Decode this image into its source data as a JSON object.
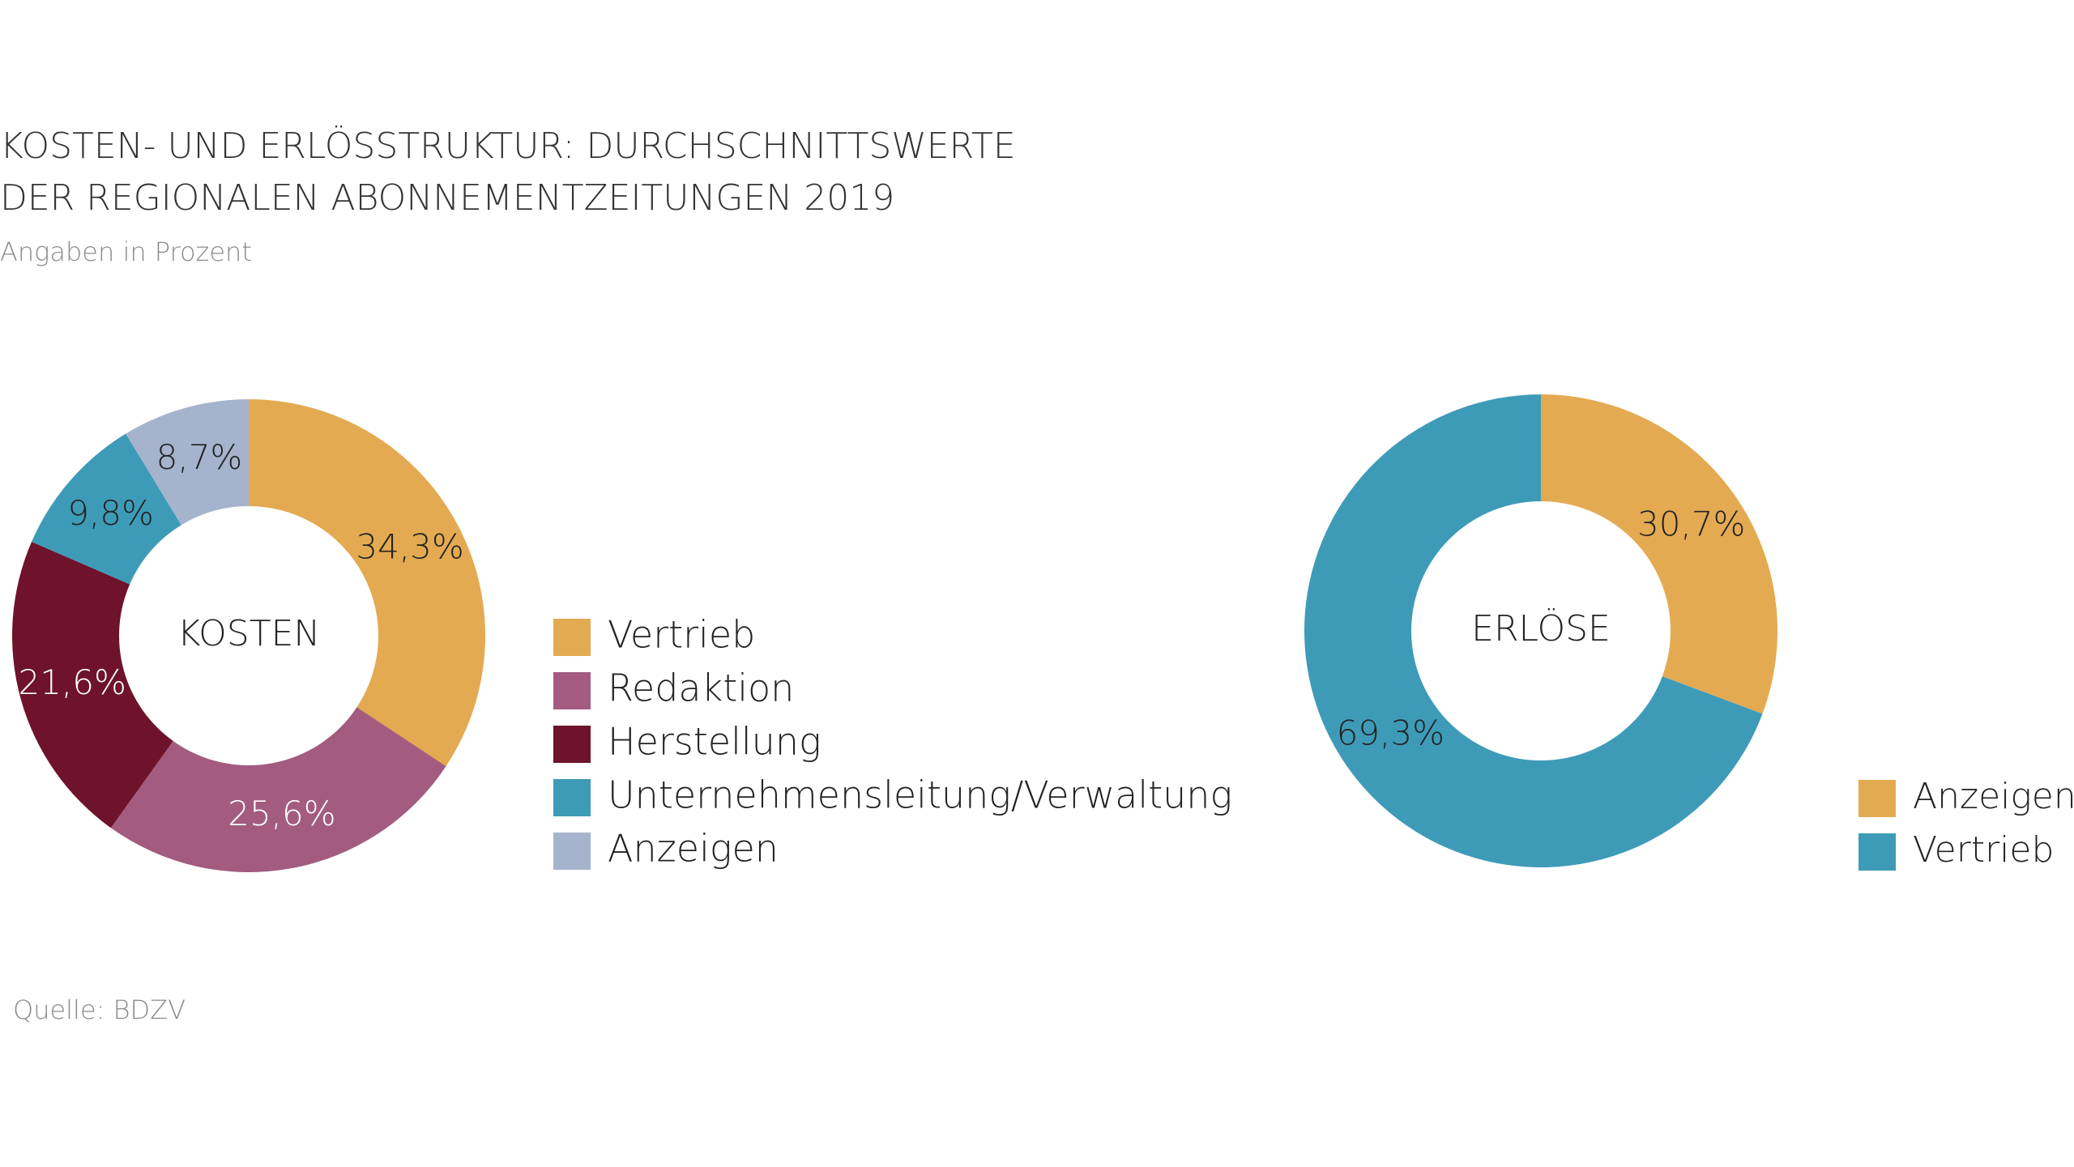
{
  "title": [
    "KOSTEN- UND ERLÖSSTRUKTUR: DURCHSCHNITTSWERTE",
    "DER REGIONALEN ABONNEMENTZEITUNGEN 2019"
  ],
  "subtitle": "Angaben in Prozent",
  "source": "Quelle: BDZV",
  "chart_data": [
    {
      "type": "donut",
      "center_label": "KOSTEN",
      "categories": [
        "Vertrieb",
        "Redaktion",
        "Herstellung",
        "Unternehmensleitung/Verwaltung",
        "Anzeigen"
      ],
      "values": [
        34.3,
        25.6,
        21.6,
        9.8,
        8.7
      ],
      "value_labels": [
        "34,3%",
        "25,6%",
        "21,6%",
        "9,8%",
        "8,7%"
      ],
      "colors": [
        "#e4aa52",
        "#a35c80",
        "#6e132b",
        "#3e9bb8",
        "#a5b3cc"
      ]
    },
    {
      "type": "donut",
      "center_label": "ERLÖSE",
      "categories": [
        "Anzeigen",
        "Vertrieb"
      ],
      "values": [
        30.7,
        69.3
      ],
      "value_labels": [
        "30,7%",
        "69,3%"
      ],
      "colors": [
        "#e4aa52",
        "#3e9bb8"
      ]
    }
  ]
}
